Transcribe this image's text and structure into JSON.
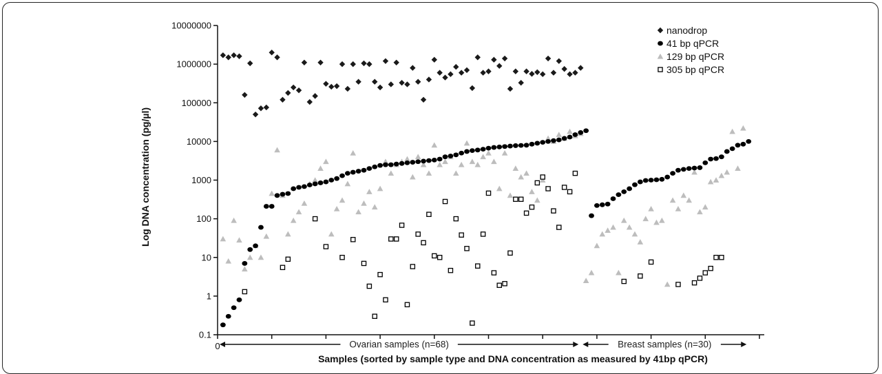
{
  "chart_data": {
    "type": "scatter",
    "title": "",
    "ylabel": "Log DNA concentration (pg/µl)",
    "xlabel": "Samples (sorted by sample type and DNA concentration as measured by 41bp qPCR)",
    "yscale": "log",
    "ylim": [
      0.1,
      10000000
    ],
    "xlim": [
      0,
      100
    ],
    "y_ticks": [
      "0.1",
      "1",
      "10",
      "100",
      "1000",
      "10000",
      "100000",
      "1000000",
      "10000000"
    ],
    "x_ticks": [
      "0"
    ],
    "groups": [
      {
        "label": "Ovarian samples (n=68)",
        "x_start": 0,
        "x_end": 67
      },
      {
        "label": "Breast samples (n=30)",
        "x_start": 67,
        "x_end": 98
      }
    ],
    "legend_position": "top-right",
    "series": [
      {
        "name": "nanodrop",
        "marker": "diamond",
        "color": "#1a1a1a",
        "x": [
          1,
          2,
          3,
          4,
          5,
          6,
          7,
          8,
          9,
          10,
          11,
          12,
          13,
          14,
          15,
          16,
          17,
          18,
          19,
          20,
          21,
          22,
          23,
          24,
          25,
          26,
          27,
          28,
          29,
          30,
          31,
          32,
          33,
          34,
          35,
          36,
          37,
          38,
          39,
          40,
          41,
          42,
          43,
          44,
          45,
          46,
          47,
          48,
          49,
          50,
          51,
          52,
          53,
          54,
          55,
          56,
          57,
          58,
          59,
          60,
          61,
          62,
          63,
          64,
          65,
          66,
          67
        ],
        "y": [
          1700000,
          1500000,
          1700000,
          1600000,
          160000,
          1050000,
          50000,
          72000,
          76000,
          2000000,
          1500000,
          120000,
          180000,
          250000,
          210000,
          1100000,
          105000,
          150000,
          1100000,
          310000,
          260000,
          270000,
          1000000,
          230000,
          1000000,
          350000,
          1050000,
          1000000,
          350000,
          250000,
          1200000,
          300000,
          1100000,
          330000,
          300000,
          800000,
          350000,
          120000,
          400000,
          1300000,
          600000,
          450000,
          550000,
          850000,
          600000,
          700000,
          240000,
          1500000,
          600000,
          650000,
          1300000,
          900000,
          1400000,
          230000,
          650000,
          330000,
          650000,
          560000,
          620000,
          550000,
          1400000,
          600000,
          1200000,
          750000,
          550000,
          600000,
          800000
        ]
      },
      {
        "name": "41 bp qPCR",
        "marker": "circle",
        "color": "#000000",
        "x": [
          1,
          2,
          3,
          4,
          5,
          6,
          7,
          8,
          9,
          10,
          11,
          12,
          13,
          14,
          15,
          16,
          17,
          18,
          19,
          20,
          21,
          22,
          23,
          24,
          25,
          26,
          27,
          28,
          29,
          30,
          31,
          32,
          33,
          34,
          35,
          36,
          37,
          38,
          39,
          40,
          41,
          42,
          43,
          44,
          45,
          46,
          47,
          48,
          49,
          50,
          51,
          52,
          53,
          54,
          55,
          56,
          57,
          58,
          59,
          60,
          61,
          62,
          63,
          64,
          65,
          66,
          67,
          68,
          69,
          70,
          71,
          72,
          73,
          74,
          75,
          76,
          77,
          78,
          79,
          80,
          81,
          82,
          83,
          84,
          85,
          86,
          87,
          88,
          89,
          90,
          91,
          92,
          93,
          94,
          95,
          96,
          97,
          98
        ],
        "y": [
          0.18,
          0.3,
          0.5,
          0.8,
          7,
          16,
          20,
          60,
          210,
          210,
          400,
          430,
          450,
          600,
          650,
          680,
          750,
          800,
          850,
          900,
          1000,
          1100,
          1300,
          1500,
          1600,
          1700,
          1800,
          2000,
          2200,
          2400,
          2500,
          2500,
          2600,
          2700,
          2800,
          2900,
          3000,
          3100,
          3200,
          3300,
          3500,
          4000,
          4200,
          4500,
          5000,
          5500,
          5800,
          6000,
          6300,
          6700,
          7000,
          7200,
          7400,
          7600,
          7800,
          7900,
          8000,
          8500,
          9000,
          9500,
          10000,
          10500,
          11000,
          12000,
          13000,
          15000,
          17000,
          19000,
          120,
          220,
          230,
          240,
          330,
          420,
          500,
          600,
          760,
          900,
          980,
          1000,
          1020,
          1050,
          1200,
          1500,
          1800,
          1900,
          2000,
          2050,
          2100,
          2800,
          3500,
          3600,
          4000,
          5500,
          6500,
          8000,
          8500,
          10000
        ]
      },
      {
        "name": "129 bp qPCR",
        "marker": "triangle",
        "color": "#bdbdbd",
        "x": [
          1,
          2,
          3,
          4,
          5,
          6,
          7,
          8,
          9,
          10,
          11,
          12,
          13,
          14,
          15,
          16,
          17,
          18,
          19,
          20,
          21,
          22,
          23,
          24,
          25,
          26,
          27,
          28,
          29,
          30,
          31,
          32,
          33,
          34,
          35,
          36,
          37,
          38,
          39,
          40,
          41,
          42,
          43,
          44,
          45,
          46,
          47,
          48,
          49,
          50,
          51,
          52,
          53,
          54,
          55,
          56,
          57,
          58,
          59,
          60,
          61,
          62,
          63,
          64,
          65,
          66,
          67,
          68,
          69,
          70,
          71,
          72,
          73,
          74,
          75,
          76,
          77,
          78,
          79,
          80,
          81,
          82,
          83,
          84,
          85,
          86,
          87,
          88,
          89,
          90,
          91,
          92,
          93,
          94,
          95,
          96,
          97
        ],
        "y": [
          30,
          8,
          90,
          28,
          5,
          10,
          20,
          10,
          35,
          450,
          6000,
          400,
          40,
          90,
          150,
          250,
          800,
          1000,
          2000,
          3000,
          40,
          180,
          300,
          800,
          5000,
          150,
          250,
          500,
          200,
          600,
          3000,
          1500,
          2500,
          3000,
          3500,
          1200,
          4000,
          2500,
          1500,
          8000,
          2500,
          3000,
          4000,
          1500,
          2500,
          9000,
          3000,
          2500,
          4000,
          5000,
          3000,
          600,
          5000,
          400,
          2000,
          1200,
          1500,
          500,
          300,
          1000,
          12000,
          10000,
          15000,
          12000,
          18000,
          14000,
          16000,
          2.5,
          4,
          20,
          40,
          50,
          60,
          4,
          90,
          60,
          40,
          25,
          100,
          180,
          80,
          90,
          2,
          300,
          180,
          400,
          300,
          1600,
          150,
          200,
          900,
          1000,
          1300,
          1600,
          18000,
          2000,
          22000
        ]
      },
      {
        "name": "305 bp qPCR",
        "marker": "square",
        "color": "#000000",
        "x": [
          5,
          12,
          13,
          18,
          20,
          23,
          25,
          27,
          28,
          29,
          30,
          31,
          32,
          33,
          34,
          35,
          36,
          37,
          38,
          39,
          40,
          41,
          42,
          43,
          44,
          45,
          46,
          47,
          48,
          49,
          50,
          51,
          52,
          53,
          54,
          55,
          56,
          57,
          58,
          59,
          60,
          61,
          62,
          63,
          64,
          65,
          66,
          75,
          78,
          80,
          85,
          88,
          89,
          90,
          91,
          92,
          93
        ],
        "y": [
          1.3,
          5.5,
          9,
          100,
          19,
          10,
          29,
          7,
          1.8,
          0.3,
          3.6,
          0.8,
          30,
          30,
          68,
          0.6,
          5.8,
          40,
          24,
          130,
          11,
          10,
          280,
          4.6,
          100,
          38,
          17,
          0.2,
          6,
          40,
          460,
          4,
          1.9,
          2.1,
          13,
          320,
          320,
          140,
          200,
          850,
          1200,
          600,
          160,
          60,
          650,
          500,
          1500,
          2.4,
          3.3,
          7.6,
          2,
          2.2,
          2.9,
          4,
          5.2,
          10,
          10
        ]
      }
    ]
  }
}
